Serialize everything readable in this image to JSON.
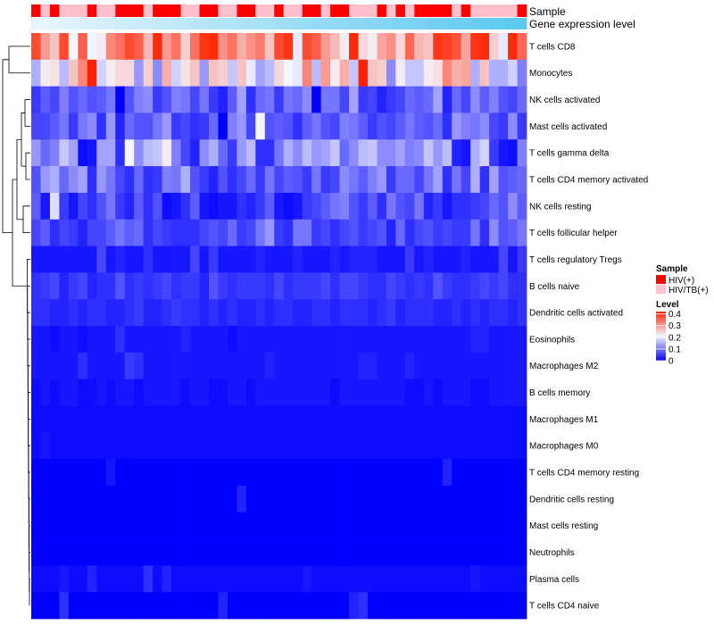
{
  "chart_data": {
    "type": "heatmap",
    "title": "",
    "annotation_rows": [
      {
        "name": "Sample",
        "label": "Sample"
      },
      {
        "name": "Gene expression level",
        "label": "Gene expression level"
      }
    ],
    "sample_groups": [
      "HIV(+)",
      "HIV/TB(+)",
      "HIV(+)",
      "HIV/TB(+)",
      "HIV/TB(+)",
      "HIV/TB(+)",
      "HIV(+)",
      "HIV/TB(+)",
      "HIV/TB(+)",
      "HIV(+)",
      "HIV(+)",
      "HIV(+)",
      "HIV/TB(+)",
      "HIV(+)",
      "HIV(+)",
      "HIV(+)",
      "HIV/TB(+)",
      "HIV/TB(+)",
      "HIV(+)",
      "HIV(+)",
      "HIV/TB(+)",
      "HIV/TB(+)",
      "HIV(+)",
      "HIV(+)",
      "HIV/TB(+)",
      "HIV/TB(+)",
      "HIV(+)",
      "HIV/TB(+)",
      "HIV/TB(+)",
      "HIV(+)",
      "HIV(+)",
      "HIV/TB(+)",
      "HIV(+)",
      "HIV(+)",
      "HIV/TB(+)",
      "HIV/TB(+)",
      "HIV/TB(+)",
      "HIV(+)",
      "HIV/TB(+)",
      "HIV(+)",
      "HIV/TB(+)",
      "HIV(+)",
      "HIV(+)",
      "HIV(+)",
      "HIV(+)",
      "HIV/TB(+)",
      "HIV(+)",
      "HIV/TB(+)",
      "HIV/TB(+)",
      "HIV/TB(+)",
      "HIV/TB(+)",
      "HIV/TB(+)",
      "HIV(+)"
    ],
    "gene_expression_level": [
      0.0,
      0.02,
      0.04,
      0.06,
      0.08,
      0.1,
      0.12,
      0.14,
      0.16,
      0.17,
      0.19,
      0.21,
      0.23,
      0.25,
      0.27,
      0.29,
      0.31,
      0.33,
      0.35,
      0.37,
      0.38,
      0.4,
      0.42,
      0.44,
      0.46,
      0.48,
      0.5,
      0.52,
      0.54,
      0.56,
      0.58,
      0.6,
      0.62,
      0.63,
      0.65,
      0.67,
      0.69,
      0.71,
      0.73,
      0.75,
      0.77,
      0.79,
      0.81,
      0.83,
      0.85,
      0.87,
      0.88,
      0.9,
      0.92,
      0.94,
      0.96,
      0.98,
      1.0
    ],
    "rows": [
      "T cells CD8",
      "Monocytes",
      "NK cells activated",
      "Mast cells activated",
      "T cells gamma delta",
      "T cells CD4 memory activated",
      "NK cells resting",
      "T cells follicular helper",
      "T cells regulatory  Tregs",
      "B cells naive",
      "Dendritic cells activated",
      "Eosinophils",
      "Macrophages M2",
      "B cells memory",
      "Macrophages M1",
      "Macrophages M0",
      "T cells CD4 memory resting",
      "Dendritic cells resting",
      "Mast cells resting",
      "Neutrophils",
      "Plasma cells",
      "T cells CD4 naive"
    ],
    "values": [
      [
        0.38,
        0.3,
        0.26,
        0.38,
        0.21,
        0.36,
        0.21,
        0.22,
        0.32,
        0.34,
        0.38,
        0.36,
        0.27,
        0.41,
        0.3,
        0.34,
        0.25,
        0.34,
        0.4,
        0.41,
        0.31,
        0.34,
        0.28,
        0.31,
        0.33,
        0.26,
        0.38,
        0.4,
        0.2,
        0.38,
        0.36,
        0.3,
        0.27,
        0.22,
        0.41,
        0.24,
        0.22,
        0.29,
        0.31,
        0.24,
        0.35,
        0.27,
        0.26,
        0.4,
        0.39,
        0.37,
        0.29,
        0.4,
        0.41,
        0.25,
        0.2,
        0.41,
        0.35
      ],
      [
        0.15,
        0.22,
        0.23,
        0.16,
        0.26,
        0.32,
        0.42,
        0.18,
        0.22,
        0.24,
        0.24,
        0.13,
        0.25,
        0.12,
        0.28,
        0.18,
        0.23,
        0.26,
        0.13,
        0.26,
        0.25,
        0.17,
        0.26,
        0.2,
        0.14,
        0.16,
        0.24,
        0.21,
        0.2,
        0.32,
        0.16,
        0.3,
        0.22,
        0.28,
        0.17,
        0.45,
        0.26,
        0.25,
        0.12,
        0.22,
        0.17,
        0.17,
        0.22,
        0.23,
        0.32,
        0.28,
        0.29,
        0.15,
        0.26,
        0.15,
        0.15,
        0.18,
        0.11
      ],
      [
        0.05,
        0.08,
        0.06,
        0.11,
        0.07,
        0.09,
        0.07,
        0.08,
        0.1,
        0.0,
        0.07,
        0.11,
        0.12,
        0.05,
        0.07,
        0.11,
        0.1,
        0.06,
        0.1,
        0.05,
        0.03,
        0.08,
        0.14,
        0.04,
        0.09,
        0.1,
        0.05,
        0.1,
        0.09,
        0.12,
        0.0,
        0.1,
        0.1,
        0.06,
        0.14,
        0.05,
        0.06,
        0.03,
        0.05,
        0.06,
        0.09,
        0.08,
        0.09,
        0.14,
        0.03,
        0.09,
        0.06,
        0.12,
        0.08,
        0.11,
        0.07,
        0.06,
        0.09
      ],
      [
        0.06,
        0.06,
        0.08,
        0.1,
        0.05,
        0.1,
        0.12,
        0.04,
        0.13,
        0.03,
        0.09,
        0.07,
        0.07,
        0.1,
        0.13,
        0.05,
        0.06,
        0.04,
        0.05,
        0.09,
        0.0,
        0.11,
        0.13,
        0.06,
        0.21,
        0.07,
        0.08,
        0.07,
        0.04,
        0.08,
        0.1,
        0.07,
        0.06,
        0.11,
        0.1,
        0.08,
        0.05,
        0.07,
        0.06,
        0.08,
        0.1,
        0.08,
        0.07,
        0.09,
        0.04,
        0.13,
        0.11,
        0.1,
        0.12,
        0.06,
        0.05,
        0.12,
        0.05
      ],
      [
        0.13,
        0.09,
        0.11,
        0.17,
        0.14,
        0.01,
        0.02,
        0.14,
        0.14,
        0.04,
        0.21,
        0.12,
        0.16,
        0.17,
        0.22,
        0.11,
        0.06,
        0.03,
        0.12,
        0.15,
        0.09,
        0.05,
        0.13,
        0.16,
        0.04,
        0.04,
        0.1,
        0.15,
        0.12,
        0.16,
        0.13,
        0.14,
        0.17,
        0.09,
        0.12,
        0.16,
        0.17,
        0.12,
        0.12,
        0.14,
        0.11,
        0.12,
        0.17,
        0.13,
        0.16,
        0.03,
        0.02,
        0.15,
        0.18,
        0.05,
        0.02,
        0.01,
        0.11
      ],
      [
        0.07,
        0.13,
        0.15,
        0.09,
        0.12,
        0.14,
        0.04,
        0.13,
        0.1,
        0.06,
        0.04,
        0.09,
        0.04,
        0.05,
        0.11,
        0.1,
        0.15,
        0.07,
        0.05,
        0.03,
        0.07,
        0.04,
        0.06,
        0.09,
        0.05,
        0.1,
        0.06,
        0.08,
        0.07,
        0.05,
        0.1,
        0.05,
        0.06,
        0.12,
        0.1,
        0.08,
        0.11,
        0.13,
        0.05,
        0.09,
        0.09,
        0.06,
        0.1,
        0.14,
        0.04,
        0.1,
        0.06,
        0.15,
        0.04,
        0.14,
        0.07,
        0.08,
        0.09
      ],
      [
        0.08,
        0.02,
        0.19,
        0.05,
        0.02,
        0.06,
        0.04,
        0.07,
        0.1,
        0.05,
        0.03,
        0.08,
        0.04,
        0.07,
        0.01,
        0.02,
        0.04,
        0.08,
        0.02,
        0.01,
        0.02,
        0.02,
        0.04,
        0.03,
        0.05,
        0.08,
        0.02,
        0.01,
        0.02,
        0.05,
        0.06,
        0.08,
        0.1,
        0.11,
        0.07,
        0.05,
        0.08,
        0.04,
        0.1,
        0.07,
        0.06,
        0.1,
        0.03,
        0.05,
        0.02,
        0.04,
        0.04,
        0.05,
        0.06,
        0.09,
        0.07,
        0.12,
        0.08
      ],
      [
        0.06,
        0.08,
        0.04,
        0.06,
        0.05,
        0.03,
        0.06,
        0.06,
        0.08,
        0.1,
        0.08,
        0.09,
        0.04,
        0.06,
        0.05,
        0.04,
        0.04,
        0.04,
        0.06,
        0.07,
        0.06,
        0.09,
        0.05,
        0.06,
        0.1,
        0.13,
        0.05,
        0.04,
        0.1,
        0.1,
        0.05,
        0.06,
        0.04,
        0.06,
        0.07,
        0.05,
        0.06,
        0.07,
        0.03,
        0.09,
        0.04,
        0.06,
        0.07,
        0.05,
        0.06,
        0.05,
        0.05,
        0.1,
        0.04,
        0.12,
        0.07,
        0.08,
        0.1
      ],
      [
        0.02,
        0.02,
        0.02,
        0.02,
        0.02,
        0.02,
        0.02,
        0.06,
        0.02,
        0.03,
        0.02,
        0.02,
        0.04,
        0.02,
        0.02,
        0.02,
        0.02,
        0.06,
        0.02,
        0.05,
        0.02,
        0.02,
        0.02,
        0.02,
        0.03,
        0.02,
        0.02,
        0.02,
        0.03,
        0.02,
        0.02,
        0.02,
        0.03,
        0.02,
        0.03,
        0.03,
        0.03,
        0.02,
        0.02,
        0.02,
        0.05,
        0.02,
        0.03,
        0.02,
        0.02,
        0.02,
        0.03,
        0.02,
        0.02,
        0.02,
        0.06,
        0.02,
        0.05
      ],
      [
        0.04,
        0.05,
        0.06,
        0.03,
        0.05,
        0.06,
        0.03,
        0.04,
        0.04,
        0.07,
        0.04,
        0.05,
        0.04,
        0.05,
        0.06,
        0.04,
        0.05,
        0.05,
        0.03,
        0.07,
        0.05,
        0.04,
        0.05,
        0.05,
        0.05,
        0.04,
        0.06,
        0.04,
        0.05,
        0.05,
        0.05,
        0.06,
        0.04,
        0.06,
        0.06,
        0.05,
        0.04,
        0.04,
        0.06,
        0.05,
        0.04,
        0.05,
        0.04,
        0.07,
        0.05,
        0.04,
        0.04,
        0.05,
        0.06,
        0.05,
        0.06,
        0.04,
        0.04
      ],
      [
        0.04,
        0.04,
        0.03,
        0.03,
        0.04,
        0.03,
        0.04,
        0.04,
        0.03,
        0.03,
        0.04,
        0.05,
        0.03,
        0.03,
        0.04,
        0.05,
        0.04,
        0.04,
        0.03,
        0.04,
        0.03,
        0.04,
        0.03,
        0.03,
        0.04,
        0.03,
        0.04,
        0.04,
        0.03,
        0.03,
        0.04,
        0.04,
        0.03,
        0.04,
        0.04,
        0.04,
        0.03,
        0.04,
        0.05,
        0.03,
        0.04,
        0.04,
        0.04,
        0.03,
        0.03,
        0.04,
        0.03,
        0.04,
        0.03,
        0.04,
        0.04,
        0.03,
        0.04
      ],
      [
        0.02,
        0.02,
        0.01,
        0.02,
        0.02,
        0.01,
        0.02,
        0.02,
        0.02,
        0.04,
        0.02,
        0.02,
        0.02,
        0.02,
        0.02,
        0.02,
        0.03,
        0.02,
        0.02,
        0.02,
        0.02,
        0.01,
        0.02,
        0.02,
        0.02,
        0.02,
        0.02,
        0.02,
        0.02,
        0.02,
        0.02,
        0.02,
        0.02,
        0.02,
        0.02,
        0.02,
        0.02,
        0.02,
        0.02,
        0.02,
        0.02,
        0.02,
        0.02,
        0.02,
        0.02,
        0.02,
        0.02,
        0.03,
        0.03,
        0.02,
        0.02,
        0.02,
        0.02
      ],
      [
        0.02,
        0.02,
        0.02,
        0.02,
        0.02,
        0.04,
        0.02,
        0.02,
        0.02,
        0.02,
        0.05,
        0.04,
        0.02,
        0.02,
        0.02,
        0.02,
        0.02,
        0.02,
        0.02,
        0.02,
        0.02,
        0.02,
        0.02,
        0.02,
        0.02,
        0.03,
        0.02,
        0.02,
        0.02,
        0.02,
        0.02,
        0.02,
        0.02,
        0.02,
        0.02,
        0.03,
        0.03,
        0.02,
        0.02,
        0.02,
        0.03,
        0.02,
        0.02,
        0.02,
        0.02,
        0.02,
        0.02,
        0.02,
        0.02,
        0.02,
        0.02,
        0.02,
        0.02
      ],
      [
        0.01,
        0.02,
        0.01,
        0.02,
        0.02,
        0.01,
        0.01,
        0.02,
        0.01,
        0.02,
        0.02,
        0.01,
        0.02,
        0.02,
        0.02,
        0.02,
        0.01,
        0.02,
        0.02,
        0.01,
        0.01,
        0.02,
        0.02,
        0.01,
        0.02,
        0.02,
        0.02,
        0.02,
        0.02,
        0.02,
        0.02,
        0.02,
        0.01,
        0.02,
        0.02,
        0.02,
        0.02,
        0.02,
        0.02,
        0.02,
        0.01,
        0.01,
        0.02,
        0.01,
        0.02,
        0.02,
        0.02,
        0.01,
        0.01,
        0.02,
        0.02,
        0.02,
        0.02
      ],
      [
        0.01,
        0.01,
        0.01,
        0.01,
        0.01,
        0.01,
        0.01,
        0.01,
        0.01,
        0.01,
        0.01,
        0.01,
        0.01,
        0.01,
        0.01,
        0.01,
        0.01,
        0.01,
        0.01,
        0.01,
        0.01,
        0.01,
        0.01,
        0.01,
        0.01,
        0.01,
        0.01,
        0.01,
        0.01,
        0.01,
        0.01,
        0.01,
        0.01,
        0.01,
        0.01,
        0.01,
        0.01,
        0.01,
        0.01,
        0.01,
        0.01,
        0.01,
        0.01,
        0.01,
        0.01,
        0.01,
        0.01,
        0.01,
        0.01,
        0.01,
        0.01,
        0.01,
        0.01
      ],
      [
        0.01,
        0.02,
        0.01,
        0.01,
        0.01,
        0.01,
        0.01,
        0.01,
        0.01,
        0.01,
        0.01,
        0.01,
        0.01,
        0.01,
        0.01,
        0.01,
        0.01,
        0.01,
        0.01,
        0.01,
        0.01,
        0.01,
        0.01,
        0.01,
        0.01,
        0.01,
        0.01,
        0.01,
        0.01,
        0.01,
        0.01,
        0.01,
        0.01,
        0.01,
        0.01,
        0.01,
        0.01,
        0.01,
        0.01,
        0.01,
        0.01,
        0.01,
        0.01,
        0.01,
        0.01,
        0.01,
        0.01,
        0.01,
        0.01,
        0.01,
        0.01,
        0.01,
        0.01
      ],
      [
        0.0,
        0.0,
        0.0,
        0.0,
        0.0,
        0.0,
        0.0,
        0.0,
        0.02,
        0.0,
        0.0,
        0.0,
        0.0,
        0.0,
        0.0,
        0.0,
        0.0,
        0.0,
        0.0,
        0.0,
        0.0,
        0.0,
        0.0,
        0.0,
        0.0,
        0.0,
        0.0,
        0.0,
        0.0,
        0.0,
        0.0,
        0.0,
        0.0,
        0.0,
        0.0,
        0.0,
        0.0,
        0.0,
        0.0,
        0.0,
        0.0,
        0.0,
        0.0,
        0.0,
        0.03,
        0.0,
        0.0,
        0.0,
        0.0,
        0.0,
        0.0,
        0.0,
        0.0
      ],
      [
        0.0,
        0.0,
        0.0,
        0.0,
        0.0,
        0.0,
        0.0,
        0.0,
        0.0,
        0.0,
        0.0,
        0.0,
        0.0,
        0.0,
        0.0,
        0.0,
        0.0,
        0.0,
        0.0,
        0.0,
        0.0,
        0.0,
        0.03,
        0.0,
        0.0,
        0.0,
        0.0,
        0.0,
        0.0,
        0.0,
        0.0,
        0.0,
        0.0,
        0.0,
        0.0,
        0.0,
        0.0,
        0.0,
        0.0,
        0.0,
        0.0,
        0.0,
        0.0,
        0.0,
        0.0,
        0.0,
        0.0,
        0.0,
        0.0,
        0.0,
        0.0,
        0.0,
        0.0
      ],
      [
        0.0,
        0.0,
        0.0,
        0.0,
        0.0,
        0.0,
        0.0,
        0.0,
        0.0,
        0.0,
        0.0,
        0.0,
        0.0,
        0.0,
        0.0,
        0.0,
        0.0,
        0.0,
        0.0,
        0.0,
        0.0,
        0.0,
        0.0,
        0.0,
        0.0,
        0.0,
        0.0,
        0.0,
        0.0,
        0.0,
        0.0,
        0.0,
        0.0,
        0.0,
        0.0,
        0.0,
        0.0,
        0.0,
        0.0,
        0.0,
        0.0,
        0.0,
        0.0,
        0.0,
        0.0,
        0.0,
        0.0,
        0.0,
        0.0,
        0.0,
        0.0,
        0.0,
        0.0
      ],
      [
        0.0,
        0.0,
        0.0,
        0.0,
        0.0,
        0.0,
        0.0,
        0.0,
        0.0,
        0.0,
        0.0,
        0.0,
        0.0,
        0.0,
        0.0,
        0.0,
        0.0,
        0.0,
        0.0,
        0.0,
        0.0,
        0.0,
        0.0,
        0.0,
        0.0,
        0.0,
        0.0,
        0.0,
        0.0,
        0.0,
        0.0,
        0.0,
        0.0,
        0.0,
        0.0,
        0.0,
        0.0,
        0.0,
        0.0,
        0.0,
        0.0,
        0.0,
        0.0,
        0.0,
        0.0,
        0.0,
        0.0,
        0.0,
        0.0,
        0.0,
        0.0,
        0.0,
        0.0
      ],
      [
        0.01,
        0.01,
        0.01,
        0.02,
        0.01,
        0.01,
        0.03,
        0.01,
        0.01,
        0.01,
        0.01,
        0.01,
        0.04,
        0.01,
        0.03,
        0.01,
        0.01,
        0.01,
        0.01,
        0.01,
        0.01,
        0.01,
        0.01,
        0.01,
        0.01,
        0.01,
        0.01,
        0.01,
        0.01,
        0.02,
        0.01,
        0.01,
        0.01,
        0.01,
        0.01,
        0.01,
        0.01,
        0.01,
        0.01,
        0.01,
        0.01,
        0.01,
        0.01,
        0.01,
        0.01,
        0.01,
        0.01,
        0.02,
        0.01,
        0.01,
        0.01,
        0.01,
        0.01
      ],
      [
        0.0,
        0.0,
        0.0,
        0.04,
        0.0,
        0.0,
        0.0,
        0.0,
        0.0,
        0.0,
        0.0,
        0.0,
        0.0,
        0.0,
        0.0,
        0.0,
        0.0,
        0.0,
        0.0,
        0.0,
        0.03,
        0.0,
        0.0,
        0.0,
        0.0,
        0.0,
        0.0,
        0.0,
        0.0,
        0.0,
        0.0,
        0.0,
        0.0,
        0.0,
        0.03,
        0.04,
        0.0,
        0.0,
        0.0,
        0.0,
        0.0,
        0.0,
        0.0,
        0.0,
        0.0,
        0.0,
        0.0,
        0.0,
        0.0,
        0.0,
        0.0,
        0.0,
        0.0
      ]
    ],
    "legend": {
      "sample": {
        "title": "Sample",
        "entries": [
          {
            "label": "HIV(+)",
            "color": "#ff0000"
          },
          {
            "label": "HIV/TB(+)",
            "color": "#ffc0cb"
          }
        ]
      },
      "level": {
        "title": "Level",
        "ticks": [
          "0.4",
          "0.3",
          "0.2",
          "0.1",
          "0"
        ],
        "tick_values": [
          0.4,
          0.3,
          0.2,
          0.1,
          0
        ],
        "range": [
          0,
          0.42
        ]
      },
      "placement": "right"
    },
    "colors": {
      "low": "#0000ff",
      "mid": "#f5f5ff",
      "high": "#ff2200",
      "mid_value": 0.21,
      "expr_low": "#e8f6fc",
      "expr_high": "#5bc8ef"
    },
    "dendrogram": true
  }
}
